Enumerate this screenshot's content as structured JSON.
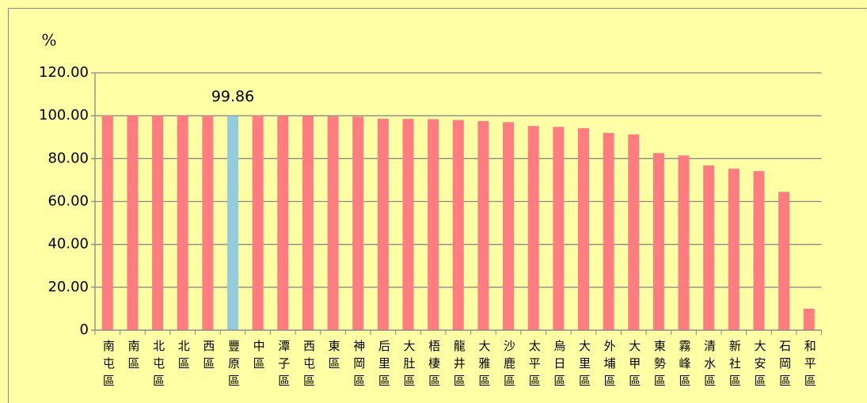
{
  "chart_data": {
    "type": "bar",
    "y_label": "%",
    "categories": [
      "南屯區",
      "南區",
      "北屯區",
      "北區",
      "西區",
      "豐原區",
      "中區",
      "潭子區",
      "西屯區",
      "東區",
      "神岡區",
      "后里區",
      "大肚區",
      "梧棲區",
      "龍井區",
      "大雅區",
      "沙鹿區",
      "太平區",
      "烏日區",
      "大里區",
      "外埔區",
      "大甲區",
      "東勢區",
      "霧峰區",
      "清水區",
      "新社區",
      "大安區",
      "石岡區",
      "和平區"
    ],
    "values": [
      100,
      100,
      100,
      100,
      100,
      99.86,
      100,
      99.9,
      99.8,
      99.7,
      99.6,
      98.6,
      98.5,
      98.4,
      98.0,
      97.5,
      97.0,
      95.2,
      94.8,
      94.2,
      92.0,
      91.3,
      82.6,
      81.5,
      76.8,
      75.3,
      74.2,
      64.5,
      10
    ],
    "color": "#ff7c80",
    "highlight": "豐原區",
    "highlight_color": "#93cddd",
    "ylim": [
      0,
      120
    ],
    "yticks": [
      0,
      {
        "value": 20,
        "label": "20.00"
      },
      {
        "value": 40,
        "label": "40.00"
      },
      {
        "value": 60,
        "label": "60.00"
      },
      {
        "value": 80,
        "label": "80.00"
      },
      {
        "value": 100,
        "label": "100.00"
      },
      {
        "value": 120,
        "label": "120.00"
      }
    ],
    "grid": true
  }
}
